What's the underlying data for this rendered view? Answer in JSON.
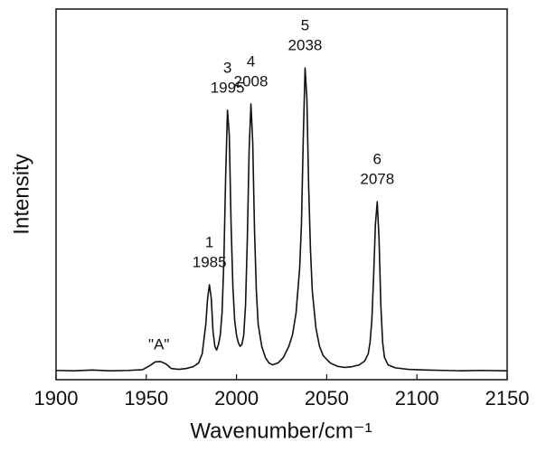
{
  "chart_data": {
    "type": "line",
    "xlabel": "Wavenumber/cm⁻¹",
    "ylabel": "Intensity",
    "xlim": [
      1900,
      2150
    ],
    "xticks": [
      1900,
      1950,
      2000,
      2050,
      2100,
      2150
    ],
    "ylim": [
      0,
      100
    ],
    "color": "#111111",
    "x": [
      1900,
      1910,
      1920,
      1930,
      1940,
      1948,
      1952,
      1955,
      1958,
      1961,
      1964,
      1968,
      1972,
      1976,
      1979,
      1981,
      1983,
      1984,
      1985,
      1986,
      1987,
      1988,
      1989,
      1990,
      1991,
      1992,
      1993,
      1994,
      1995,
      1996,
      1997,
      1998,
      1999,
      2000,
      2001,
      2002,
      2003,
      2004,
      2005,
      2006,
      2007,
      2008,
      2009,
      2010,
      2011,
      2012,
      2014,
      2016,
      2018,
      2020,
      2023,
      2026,
      2029,
      2031,
      2033,
      2035,
      2036,
      2037,
      2038,
      2039,
      2040,
      2041,
      2042,
      2044,
      2046,
      2048,
      2052,
      2056,
      2060,
      2064,
      2068,
      2071,
      2073,
      2074,
      2075,
      2076,
      2077,
      2078,
      2079,
      2080,
      2081,
      2082,
      2084,
      2088,
      2095,
      2105,
      2115,
      2125,
      2135,
      2150
    ],
    "values": [
      2.5,
      2.4,
      2.6,
      2.4,
      2.5,
      2.7,
      3.8,
      4.8,
      4.9,
      4.2,
      3.0,
      2.8,
      3.0,
      3.5,
      4.5,
      7,
      15,
      22,
      25.6,
      22,
      13,
      9,
      8,
      9.5,
      12,
      18,
      32,
      55,
      72.7,
      66,
      42,
      25,
      16,
      12,
      10,
      9,
      9.5,
      12,
      20,
      38,
      62,
      74.4,
      64,
      40,
      24,
      15,
      9,
      6,
      4.5,
      4,
      4.5,
      6,
      9,
      12,
      18,
      30,
      42,
      65,
      84.1,
      76,
      52,
      35,
      24,
      14,
      9,
      6.5,
      4.5,
      3.6,
      3.3,
      3.5,
      4,
      5,
      7,
      10,
      16,
      28,
      42,
      48,
      38,
      20,
      10,
      6,
      4,
      3.2,
      2.8,
      2.6,
      2.5,
      2.4,
      2.5,
      2.4
    ],
    "peak_labels": [
      {
        "label": "1",
        "x": 1985
      },
      {
        "label": "3",
        "x": 1995
      },
      {
        "label": "4",
        "x": 2008
      },
      {
        "label": "5",
        "x": 2038
      },
      {
        "label": "6",
        "x": 2078
      }
    ],
    "annotations": [
      {
        "text": "\"A\"",
        "x": 1957
      }
    ]
  }
}
